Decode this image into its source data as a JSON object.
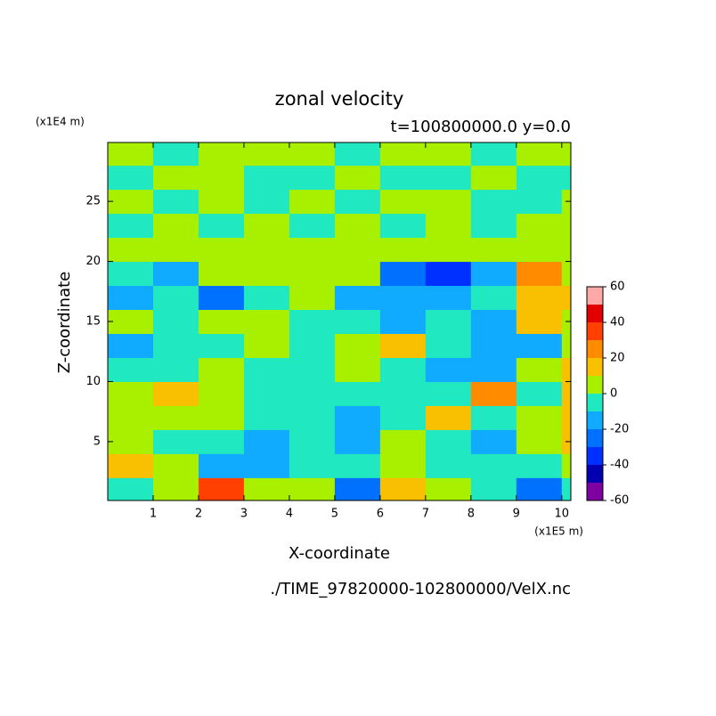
{
  "chart_data": {
    "type": "contour",
    "title": "zonal velocity",
    "subtitle": "t=100800000.0 y=0.0",
    "x_label": "X-coordinate",
    "y_label": "Z-coordinate",
    "x_unit": "(x1E5 m)",
    "y_unit": "(x1E4 m)",
    "footer": "./TIME_97820000-102800000/VelX.nc",
    "xlim": [
      0,
      10.2
    ],
    "ylim": [
      0.1,
      29.9
    ],
    "xticks": [
      1,
      2,
      3,
      4,
      5,
      6,
      7,
      8,
      9,
      10
    ],
    "yticks": [
      5,
      10,
      15,
      20,
      25
    ],
    "xbins": [
      0,
      1,
      2,
      3,
      4,
      5,
      6,
      7,
      8,
      9,
      10,
      10.2
    ],
    "ybins": [
      0.1,
      2,
      4,
      6,
      8,
      10,
      12,
      14,
      16,
      18,
      20,
      22,
      24,
      26,
      28,
      29.9
    ],
    "z": [
      [
        -5,
        5,
        30,
        5,
        5,
        -25,
        15,
        5,
        -5,
        -30,
        -5
      ],
      [
        15,
        5,
        -15,
        -15,
        -5,
        -5,
        5,
        -5,
        -5,
        -5,
        5
      ],
      [
        5,
        -5,
        -5,
        -15,
        -5,
        -15,
        5,
        -5,
        -15,
        5,
        15
      ],
      [
        5,
        5,
        5,
        -5,
        -5,
        -15,
        -5,
        15,
        -5,
        5,
        15
      ],
      [
        5,
        15,
        5,
        -5,
        -5,
        -5,
        -5,
        -5,
        25,
        -5,
        15
      ],
      [
        -5,
        -5,
        5,
        -5,
        -5,
        5,
        -5,
        -15,
        -15,
        5,
        15
      ],
      [
        -15,
        -5,
        -5,
        5,
        -5,
        5,
        15,
        -5,
        -15,
        -15,
        5
      ],
      [
        5,
        -5,
        5,
        5,
        -5,
        -5,
        -15,
        -5,
        -15,
        15,
        5
      ],
      [
        -15,
        -5,
        -25,
        -5,
        5,
        -15,
        -15,
        -15,
        -5,
        15,
        15
      ],
      [
        -5,
        -15,
        5,
        5,
        5,
        5,
        -25,
        -35,
        -15,
        25,
        5
      ],
      [
        5,
        5,
        5,
        5,
        5,
        5,
        5,
        5,
        5,
        5,
        5
      ],
      [
        -5,
        5,
        -5,
        5,
        -5,
        5,
        -5,
        5,
        -5,
        5,
        5
      ],
      [
        5,
        -5,
        5,
        -5,
        5,
        -5,
        5,
        5,
        -5,
        -5,
        5
      ],
      [
        -5,
        5,
        5,
        -5,
        -5,
        5,
        -5,
        -5,
        5,
        -5,
        -5
      ],
      [
        5,
        -5,
        5,
        5,
        5,
        -5,
        5,
        5,
        -5,
        5,
        5
      ]
    ],
    "levels": [
      -60,
      -50,
      -40,
      -30,
      -20,
      -10,
      0,
      10,
      20,
      30,
      40,
      50,
      60
    ],
    "colors": [
      "#7f00a0",
      "#0000b0",
      "#0030ff",
      "#0070ff",
      "#10aaff",
      "#20e8c0",
      "#a8f000",
      "#f8c000",
      "#ff8c00",
      "#ff4000",
      "#e00000",
      "#ffa8a8"
    ],
    "colorbar_ticks": [
      -60,
      -40,
      -20,
      0,
      20,
      40,
      60
    ]
  }
}
